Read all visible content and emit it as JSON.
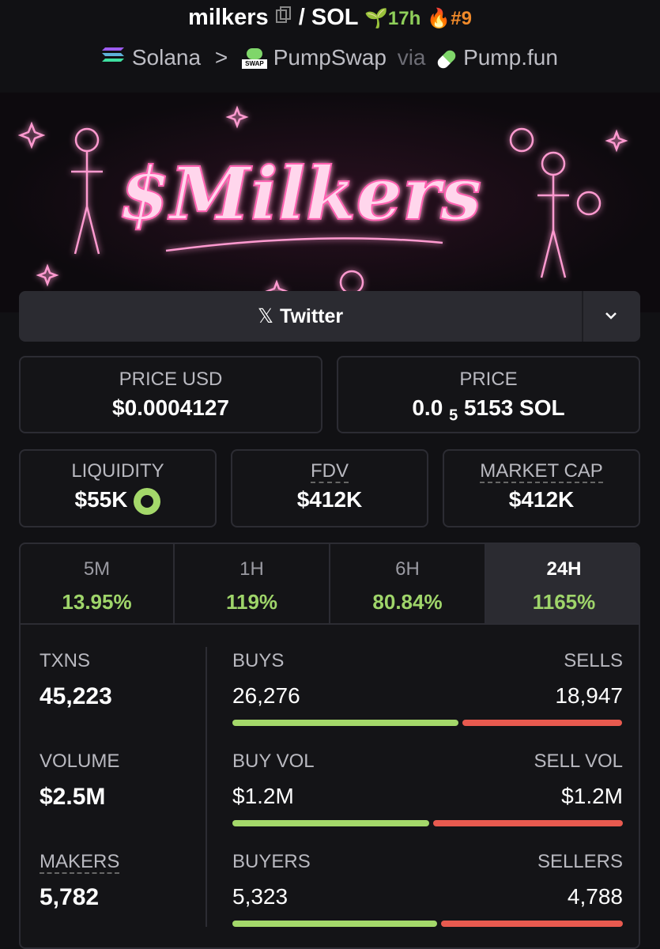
{
  "header": {
    "token": "milkers",
    "separator": "/",
    "quote": "SOL",
    "age": "17h",
    "rank": "#9",
    "chain": "Solana",
    "dex": "PumpSwap",
    "dex_icon_label": "SWAP",
    "via": "via",
    "launchpad": "Pump.fun"
  },
  "banner": {
    "text": "$Milkers"
  },
  "links": {
    "twitter": "Twitter"
  },
  "prices": {
    "usd": {
      "label": "PRICE USD",
      "value": "$0.0004127"
    },
    "native": {
      "label": "PRICE",
      "value_lead": "0.0",
      "value_sub": "5",
      "value_rest": "5153 SOL"
    }
  },
  "metrics": [
    {
      "label": "LIQUIDITY",
      "value": "$55K"
    },
    {
      "label": "FDV",
      "value": "$412K"
    },
    {
      "label": "MARKET CAP",
      "value": "$412K"
    }
  ],
  "timeframes": [
    {
      "label": "5M",
      "change": "13.95%"
    },
    {
      "label": "1H",
      "change": "119%"
    },
    {
      "label": "6H",
      "change": "80.84%"
    },
    {
      "label": "24H",
      "change": "1165%"
    }
  ],
  "stats": [
    {
      "label": "TXNS",
      "value": "45,223",
      "left_label": "BUYS",
      "left_value": "26,276",
      "right_label": "SELLS",
      "right_value": "18,947"
    },
    {
      "label": "VOLUME",
      "value": "$2.5M",
      "left_label": "BUY VOL",
      "left_value": "$1.2M",
      "right_label": "SELL VOL",
      "right_value": "$1.2M"
    },
    {
      "label": "MAKERS",
      "value": "5,782",
      "left_label": "BUYERS",
      "left_value": "5,323",
      "right_label": "SELLERS",
      "right_value": "4,788"
    }
  ]
}
